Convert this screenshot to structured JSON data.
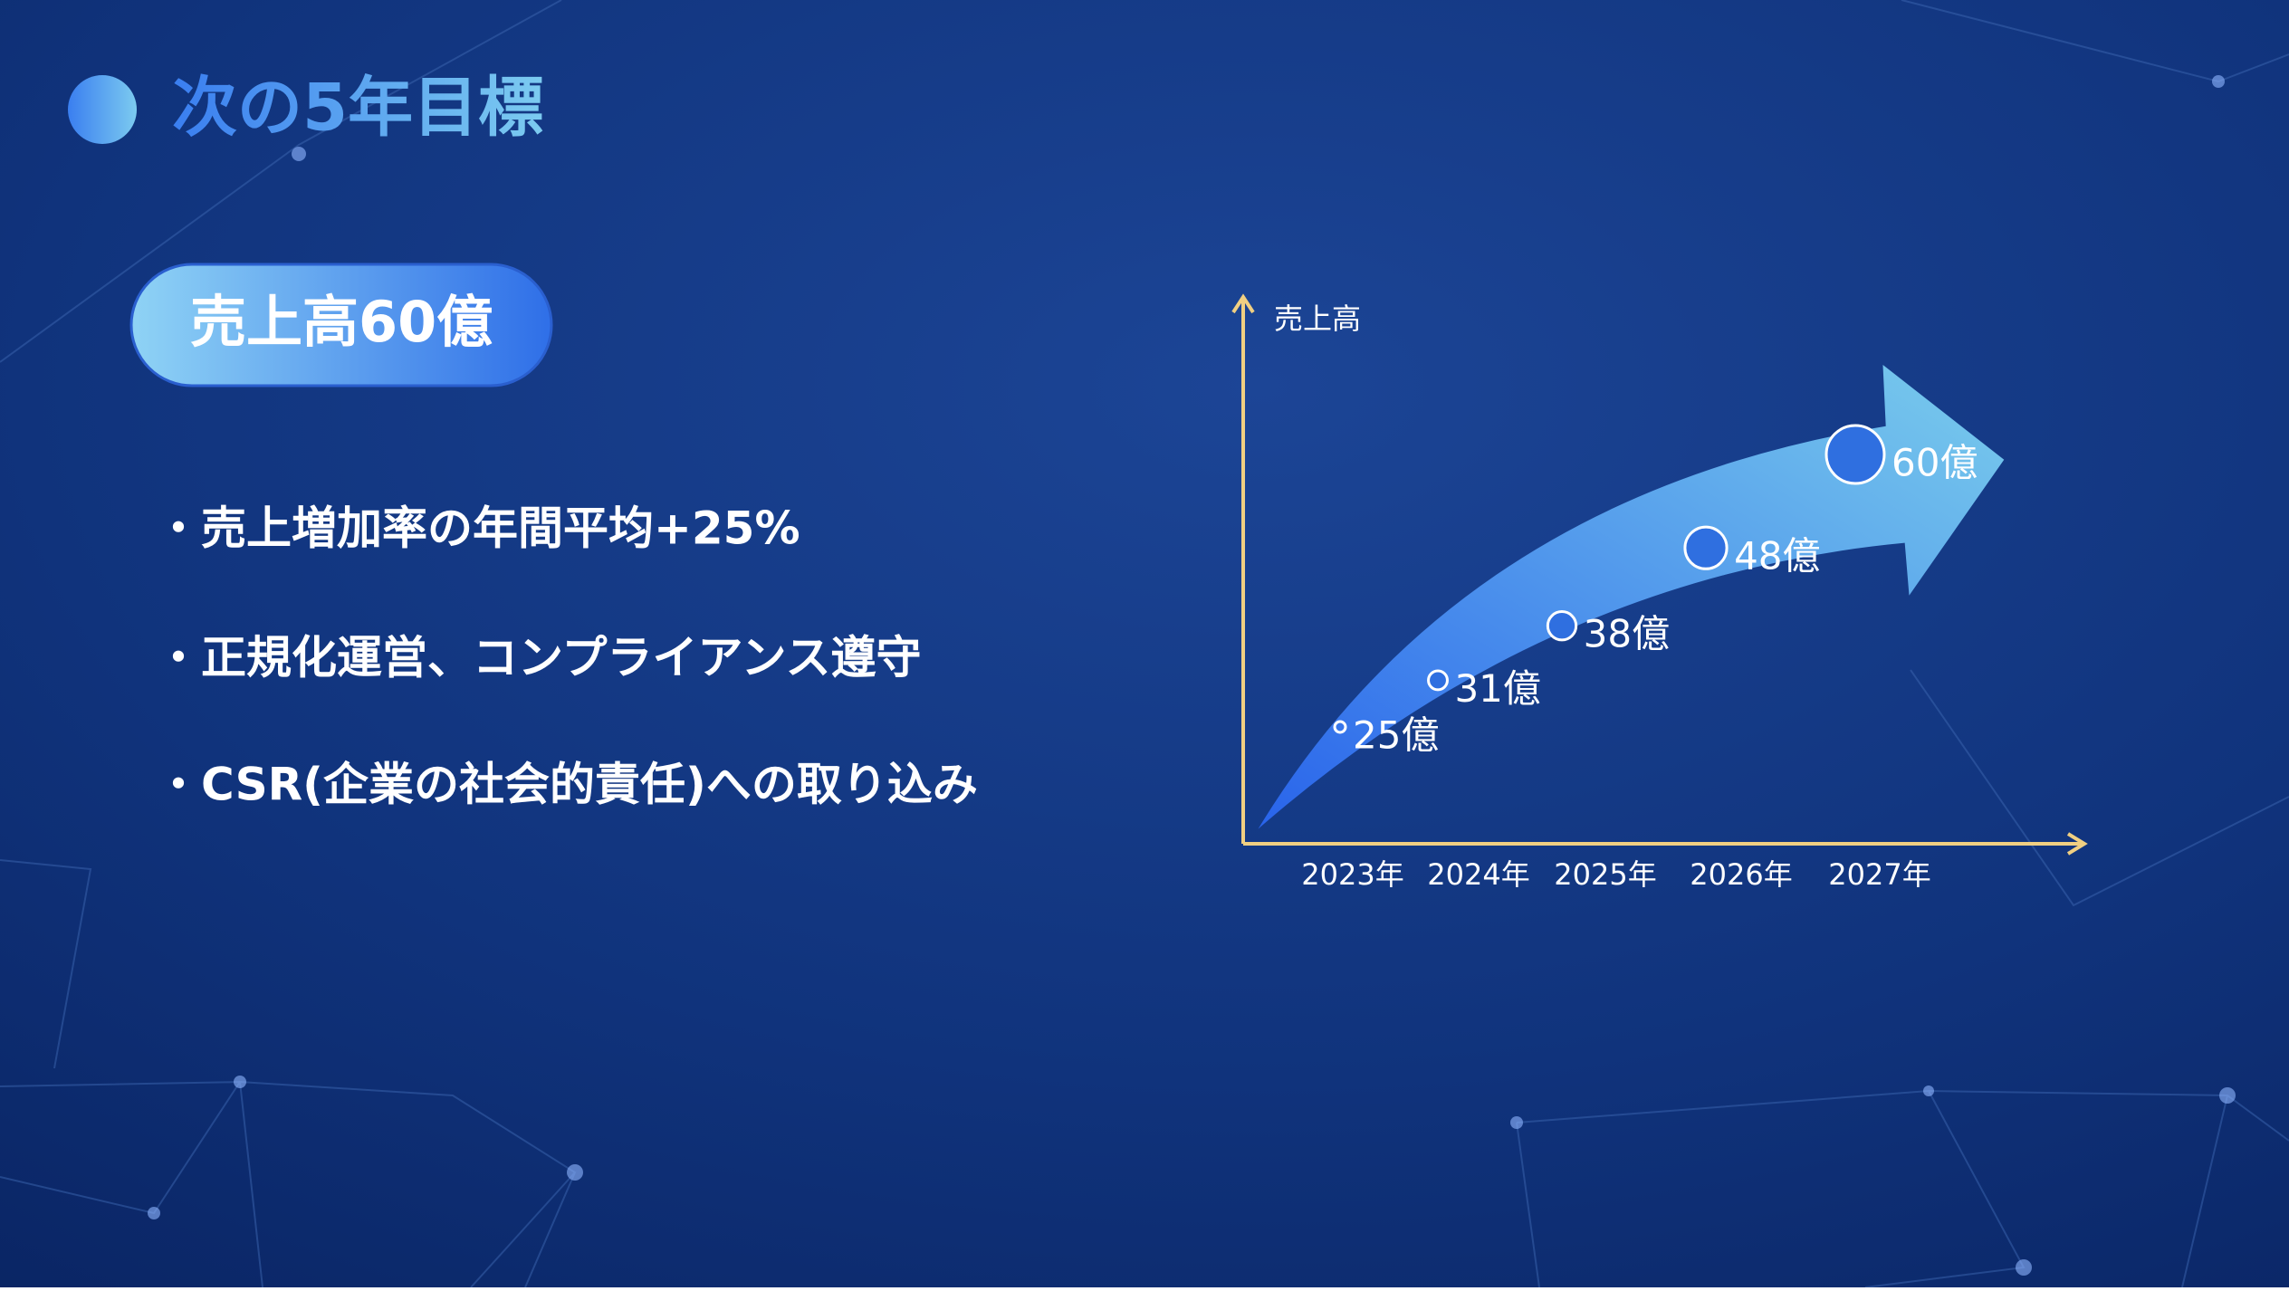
{
  "header": {
    "title": "次の5年目標"
  },
  "badge": "売上高60億",
  "bullets": [
    "・売上増加率の年間平均+25%",
    "・正規化運営、コンプライアンス遵守",
    "・CSR(企業の社会的責任)への取り込み"
  ],
  "chart_data": {
    "type": "bubble-arrow",
    "y_label": "売上高",
    "categories": [
      "2023年",
      "2024年",
      "2025年",
      "2026年",
      "2027年"
    ],
    "values": [
      25,
      31,
      38,
      48,
      60
    ],
    "value_labels": [
      "25億",
      "31億",
      "38億",
      "48億",
      "60億"
    ],
    "color": "#2f6fe0",
    "ylim": [
      10,
      80
    ]
  }
}
